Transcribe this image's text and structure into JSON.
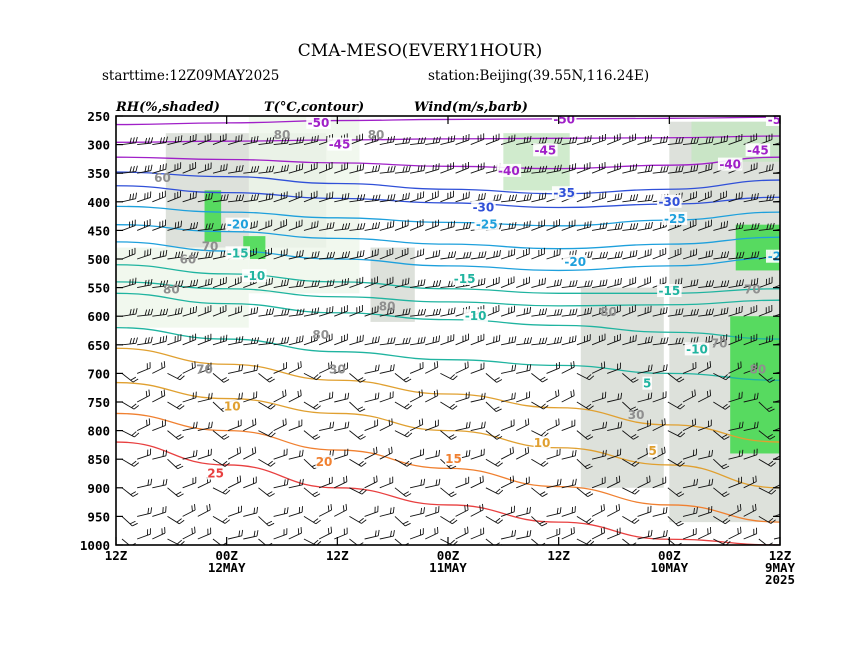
{
  "chart_data": {
    "type": "contour",
    "title": "CMA-MESO(EVERY1HOUR)",
    "subtitle_left": "starttime:12Z09MAY2025",
    "subtitle_right": "station:Beijing(39.55N,116.24E)",
    "legend": [
      {
        "label": "RH(%,shaded)"
      },
      {
        "label": "T(°C,contour)"
      },
      {
        "label": "Wind(m/s,barb)"
      }
    ],
    "y_axis": {
      "ticks": [
        250,
        300,
        350,
        400,
        450,
        500,
        550,
        600,
        650,
        700,
        750,
        800,
        850,
        900,
        950,
        1000
      ],
      "range": [
        250,
        1000
      ],
      "inverted": true
    },
    "x_axis": {
      "ticks": [
        {
          "pos": 0,
          "line1": "12Z",
          "line2": "",
          "line3": ""
        },
        {
          "pos": 1,
          "line1": "00Z",
          "line2": "12MAY",
          "line3": ""
        },
        {
          "pos": 2,
          "line1": "12Z",
          "line2": "",
          "line3": ""
        },
        {
          "pos": 3,
          "line1": "00Z",
          "line2": "11MAY",
          "line3": ""
        },
        {
          "pos": 4,
          "line1": "12Z",
          "line2": "",
          "line3": ""
        },
        {
          "pos": 5,
          "line1": "00Z",
          "line2": "10MAY",
          "line3": ""
        },
        {
          "pos": 6,
          "line1": "12Z",
          "line2": "9MAY",
          "line3": "2025"
        }
      ]
    },
    "temperature_contours": [
      {
        "value": -50,
        "color": "#a020c8",
        "p": [
          265,
          262,
          258,
          256,
          255,
          254,
          252
        ]
      },
      {
        "value": -45,
        "color": "#a020c8",
        "p": [
          296,
          294,
          292,
          290,
          289,
          288,
          285
        ]
      },
      {
        "value": -40,
        "color": "#a020c8",
        "p": [
          322,
          326,
          332,
          338,
          342,
          336,
          322
        ]
      },
      {
        "value": -35,
        "color": "#3050d8",
        "p": [
          348,
          356,
          368,
          378,
          386,
          378,
          362
        ]
      },
      {
        "value": -30,
        "color": "#3050d8",
        "p": [
          372,
          384,
          394,
          402,
          410,
          404,
          392
        ]
      },
      {
        "value": -25,
        "color": "#1ea0dc",
        "p": [
          408,
          418,
          428,
          436,
          442,
          432,
          418
        ]
      },
      {
        "value": -20,
        "color": "#1ea0dc",
        "p": [
          440,
          452,
          464,
          474,
          482,
          474,
          462
        ]
      },
      {
        "value": -15,
        "color": "#1ea0dc",
        "p": [
          470,
          486,
          500,
          512,
          520,
          512,
          498
        ]
      },
      {
        "value": -10,
        "color": "#20b4a0",
        "p": [
          510,
          526,
          540,
          552,
          560,
          560,
          552
        ]
      },
      {
        "value": -15,
        "color": "#20b4a0",
        "p": [
          540,
          552,
          566,
          575,
          582,
          580,
          572
        ]
      },
      {
        "value": -10,
        "color": "#20b4a0",
        "p": [
          560,
          578,
          594,
          606,
          616,
          628,
          640
        ]
      },
      {
        "value": 5,
        "color": "#20b4a0",
        "p": [
          620,
          640,
          662,
          676,
          686,
          700,
          712
        ]
      },
      {
        "value": 10,
        "color": "#e0a030",
        "p": [
          656,
          684,
          712,
          736,
          760,
          790,
          820
        ]
      },
      {
        "value": 15,
        "color": "#e0a030",
        "p": [
          716,
          744,
          770,
          800,
          830,
          860,
          900
        ]
      },
      {
        "value": 20,
        "color": "#f08030",
        "p": [
          770,
          800,
          834,
          866,
          898,
          930,
          960
        ]
      },
      {
        "value": 25,
        "color": "#e84040",
        "p": [
          820,
          860,
          900,
          930,
          960,
          990,
          1000
        ]
      }
    ],
    "contour_labels": [
      {
        "text": "-50",
        "pos": 1.83,
        "p": 262,
        "color": "#a020c8"
      },
      {
        "text": "-50",
        "pos": 4.05,
        "p": 256,
        "color": "#a020c8"
      },
      {
        "text": "-5",
        "pos": 5.95,
        "p": 257,
        "color": "#a020c8"
      },
      {
        "text": "-45",
        "pos": 2.02,
        "p": 300,
        "color": "#a020c8"
      },
      {
        "text": "-45",
        "pos": 3.88,
        "p": 310,
        "color": "#a020c8"
      },
      {
        "text": "-45",
        "pos": 5.8,
        "p": 310,
        "color": "#a020c8"
      },
      {
        "text": "-40",
        "pos": 3.55,
        "p": 346,
        "color": "#a020c8"
      },
      {
        "text": "-40",
        "pos": 5.55,
        "p": 335,
        "color": "#a020c8"
      },
      {
        "text": "-35",
        "pos": 4.05,
        "p": 385,
        "color": "#3050d8"
      },
      {
        "text": "-30",
        "pos": 3.32,
        "p": 410,
        "color": "#3050d8"
      },
      {
        "text": "-30",
        "pos": 5.0,
        "p": 400,
        "color": "#3050d8"
      },
      {
        "text": "-25",
        "pos": 3.35,
        "p": 440,
        "color": "#1ea0dc"
      },
      {
        "text": "-25",
        "pos": 5.05,
        "p": 430,
        "color": "#1ea0dc"
      },
      {
        "text": "-20",
        "pos": 1.1,
        "p": 440,
        "color": "#1ea0dc"
      },
      {
        "text": "-20",
        "pos": 4.15,
        "p": 505,
        "color": "#1ea0dc"
      },
      {
        "text": "-2",
        "pos": 5.95,
        "p": 496,
        "color": "#1ea0dc"
      },
      {
        "text": "-15",
        "pos": 1.1,
        "p": 490,
        "color": "#20b4a0"
      },
      {
        "text": "-15",
        "pos": 3.15,
        "p": 535,
        "color": "#20b4a0"
      },
      {
        "text": "-15",
        "pos": 5.0,
        "p": 556,
        "color": "#20b4a0"
      },
      {
        "text": "-10",
        "pos": 1.25,
        "p": 530,
        "color": "#20b4a0"
      },
      {
        "text": "-10",
        "pos": 3.25,
        "p": 600,
        "color": "#20b4a0"
      },
      {
        "text": "-10",
        "pos": 5.25,
        "p": 658,
        "color": "#20b4a0"
      },
      {
        "text": "5",
        "pos": 4.8,
        "p": 718,
        "color": "#20b4a0"
      },
      {
        "text": "10",
        "pos": 1.05,
        "p": 758,
        "color": "#e0a030"
      },
      {
        "text": "10",
        "pos": 3.85,
        "p": 822,
        "color": "#e0a030"
      },
      {
        "text": "5",
        "pos": 4.85,
        "p": 836,
        "color": "#e0a030"
      },
      {
        "text": "20",
        "pos": 1.88,
        "p": 855,
        "color": "#f08030"
      },
      {
        "text": "15",
        "pos": 3.05,
        "p": 850,
        "color": "#f08030"
      },
      {
        "text": "25",
        "pos": 0.9,
        "p": 875,
        "color": "#e84040"
      }
    ],
    "rh_labels": [
      {
        "text": "80",
        "pos": 1.5,
        "p": 290
      },
      {
        "text": "80",
        "pos": 2.35,
        "p": 290
      },
      {
        "text": "60",
        "pos": 0.42,
        "p": 365
      },
      {
        "text": "70",
        "pos": 0.85,
        "p": 485
      },
      {
        "text": "60",
        "pos": 0.65,
        "p": 508
      },
      {
        "text": "80",
        "pos": 0.5,
        "p": 560
      },
      {
        "text": "80",
        "pos": 2.45,
        "p": 590
      },
      {
        "text": "80",
        "pos": 1.85,
        "p": 640
      },
      {
        "text": "80",
        "pos": 4.45,
        "p": 600
      },
      {
        "text": "70",
        "pos": 5.45,
        "p": 655
      },
      {
        "text": "70",
        "pos": 5.75,
        "p": 560
      },
      {
        "text": "30",
        "pos": 2.0,
        "p": 700
      },
      {
        "text": "30",
        "pos": 4.7,
        "p": 780
      },
      {
        "text": "70",
        "pos": 0.8,
        "p": 700
      },
      {
        "text": "80",
        "pos": 5.8,
        "p": 700
      }
    ],
    "rh_regions": [
      {
        "level": 70,
        "x0": 0.45,
        "x1": 1.9,
        "p0": 280,
        "p1": 480
      },
      {
        "level": 70,
        "x0": 2.3,
        "x1": 2.7,
        "p0": 480,
        "p1": 610
      },
      {
        "level": 70,
        "x0": 4.2,
        "x1": 4.95,
        "p0": 550,
        "p1": 900
      },
      {
        "level": 70,
        "x0": 5.0,
        "x1": 6.0,
        "p0": 260,
        "p1": 960
      },
      {
        "level": 60,
        "x0": 0.0,
        "x1": 1.2,
        "p0": 480,
        "p1": 620
      },
      {
        "level": 60,
        "x0": 1.2,
        "x1": 2.2,
        "p0": 250,
        "p1": 560
      },
      {
        "level": 90,
        "x0": 0.8,
        "x1": 0.95,
        "p0": 380,
        "p1": 470
      },
      {
        "level": 90,
        "x0": 1.15,
        "x1": 1.35,
        "p0": 460,
        "p1": 500
      },
      {
        "level": 90,
        "x0": 5.6,
        "x1": 6.0,
        "p0": 440,
        "p1": 520
      },
      {
        "level": 90,
        "x0": 5.55,
        "x1": 6.0,
        "p0": 600,
        "p1": 840
      },
      {
        "level": 80,
        "x0": 3.5,
        "x1": 4.1,
        "p0": 280,
        "p1": 380
      },
      {
        "level": 80,
        "x0": 5.2,
        "x1": 6.0,
        "p0": 260,
        "p1": 330
      }
    ]
  }
}
